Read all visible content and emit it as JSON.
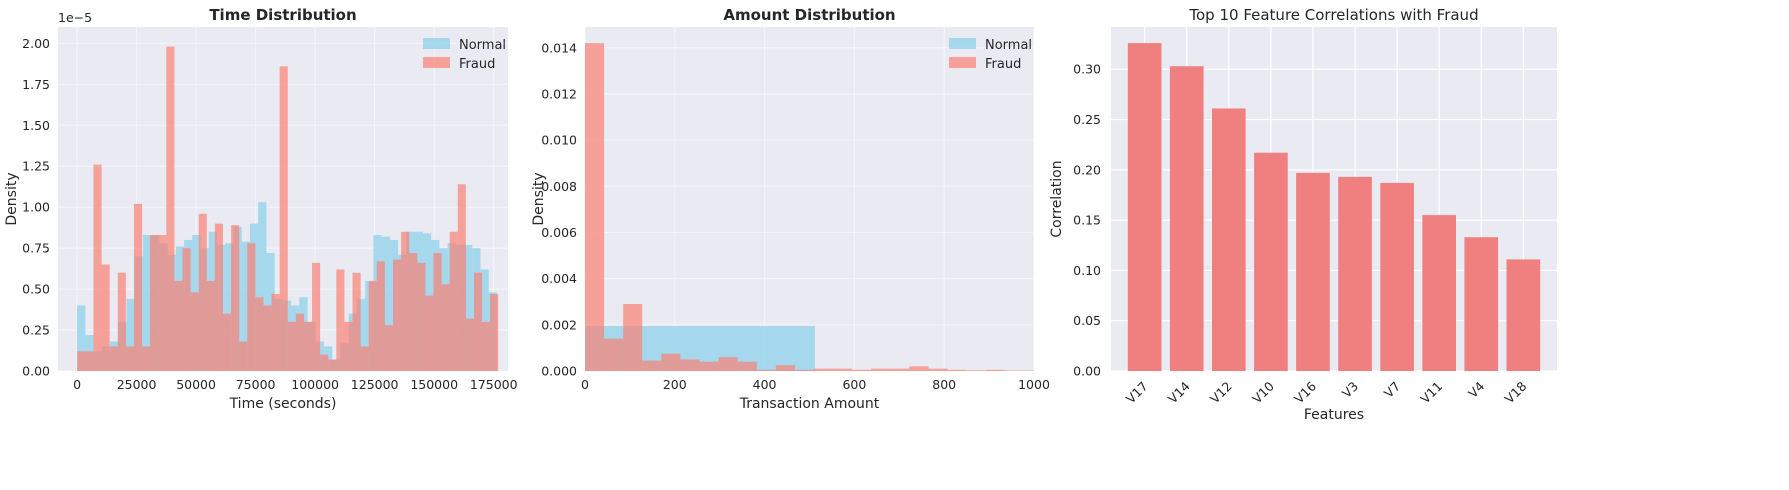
{
  "colors": {
    "plot_bg": "#eaeaf2",
    "grid": "#ffffff",
    "normal": "#87ceeb",
    "fraud": "#fa8072",
    "corr_bar": "#f08080",
    "text": "#262626"
  },
  "chart_data": [
    {
      "type": "histogram",
      "title": "Time Distribution",
      "title_bold": true,
      "xlabel": "Time (seconds)",
      "ylabel": "Density",
      "y_exponent_label": "1e−5",
      "xlim": [
        -8000,
        181000
      ],
      "ylim": [
        0,
        2.1
      ],
      "x_ticks": [
        0,
        25000,
        50000,
        75000,
        100000,
        125000,
        150000,
        175000
      ],
      "x_tick_labels": [
        "0",
        "25000",
        "50000",
        "75000",
        "100000",
        "125000",
        "150000",
        "175000"
      ],
      "y_ticks": [
        0,
        0.25,
        0.5,
        0.75,
        1.0,
        1.25,
        1.5,
        1.75,
        2.0
      ],
      "y_tick_labels": [
        "0.00",
        "0.25",
        "0.50",
        "0.75",
        "1.00",
        "1.25",
        "1.50",
        "1.75",
        "2.00"
      ],
      "legend": {
        "position": "top-right",
        "entries": [
          "Normal",
          "Fraud"
        ]
      },
      "series": [
        {
          "name": "Normal",
          "bin_start": 0,
          "bin_width": 3458,
          "values": [
            0.4,
            0.22,
            0.12,
            0.15,
            0.18,
            0.3,
            0.44,
            0.7,
            0.83,
            0.83,
            0.78,
            0.71,
            0.76,
            0.8,
            0.83,
            0.75,
            0.85,
            0.77,
            0.78,
            0.88,
            0.79,
            0.9,
            1.03,
            0.72,
            0.44,
            0.43,
            0.4,
            0.45,
            0.3,
            0.18,
            0.15,
            0.07,
            0.17,
            0.35,
            0.44,
            0.55,
            0.83,
            0.82,
            0.8,
            0.71,
            0.85,
            0.85,
            0.84,
            0.8,
            0.75,
            0.78,
            0.77,
            0.77,
            0.75,
            0.62,
            0.48
          ]
        },
        {
          "name": "Fraud",
          "bin_start": 100,
          "bin_width": 3400,
          "values": [
            0.12,
            0.12,
            1.26,
            0.65,
            0.15,
            0.6,
            0.15,
            1.02,
            0.15,
            0.83,
            0.83,
            1.98,
            0.55,
            0.75,
            0.48,
            0.96,
            0.55,
            0.9,
            0.35,
            0.89,
            0.18,
            0.78,
            0.45,
            0.4,
            0.47,
            1.86,
            0.3,
            0.35,
            0.3,
            0.66,
            0.1,
            0.07,
            0.62,
            0.3,
            0.6,
            0.15,
            0.55,
            0.67,
            0.28,
            0.68,
            0.85,
            0.72,
            0.66,
            0.46,
            0.72,
            0.53,
            0.85,
            1.14,
            0.32,
            0.6,
            0.3,
            0.47
          ]
        }
      ]
    },
    {
      "type": "histogram",
      "title": "Amount Distribution",
      "title_bold": true,
      "xlabel": "Transaction Amount",
      "ylabel": "Density",
      "xlim": [
        0,
        1000
      ],
      "ylim": [
        0,
        0.0149
      ],
      "x_ticks": [
        0,
        200,
        400,
        600,
        800,
        1000
      ],
      "x_tick_labels": [
        "0",
        "200",
        "400",
        "600",
        "800",
        "1000"
      ],
      "y_ticks": [
        0,
        0.002,
        0.004,
        0.006,
        0.008,
        0.01,
        0.012,
        0.014
      ],
      "y_tick_labels": [
        "0.000",
        "0.002",
        "0.004",
        "0.006",
        "0.008",
        "0.010",
        "0.012",
        "0.014"
      ],
      "legend": {
        "position": "top-right",
        "entries": [
          "Normal",
          "Fraud"
        ]
      },
      "series": [
        {
          "name": "Normal",
          "bin_start": 0,
          "bin_width": 512,
          "values": [
            0.00195,
            1e-05
          ]
        },
        {
          "name": "Fraud",
          "bin_start": 0,
          "bin_width": 42.5,
          "values": [
            0.0142,
            0.0014,
            0.0029,
            0.00045,
            0.00075,
            0.0005,
            0.0004,
            0.0006,
            0.0004,
            5e-05,
            0.00025,
            5e-05,
            0.0001,
            0.0001,
            5e-05,
            0.0001,
            0.0001,
            0.0002,
            0.0001,
            5e-05,
            3e-05,
            5e-05,
            2e-05,
            2e-05
          ]
        }
      ]
    },
    {
      "type": "bar",
      "title": "Top 10 Feature Correlations with Fraud",
      "title_bold": false,
      "xlabel": "Features",
      "ylabel": "Correlation",
      "ylim": [
        0,
        0.342
      ],
      "categories": [
        "V17",
        "V14",
        "V12",
        "V10",
        "V16",
        "V3",
        "V7",
        "V11",
        "V4",
        "V18"
      ],
      "values": [
        0.326,
        0.303,
        0.261,
        0.217,
        0.197,
        0.193,
        0.187,
        0.155,
        0.133,
        0.111
      ],
      "y_ticks": [
        0,
        0.05,
        0.1,
        0.15,
        0.2,
        0.25,
        0.3
      ],
      "y_tick_labels": [
        "0.00",
        "0.05",
        "0.10",
        "0.15",
        "0.20",
        "0.25",
        "0.30"
      ]
    }
  ]
}
